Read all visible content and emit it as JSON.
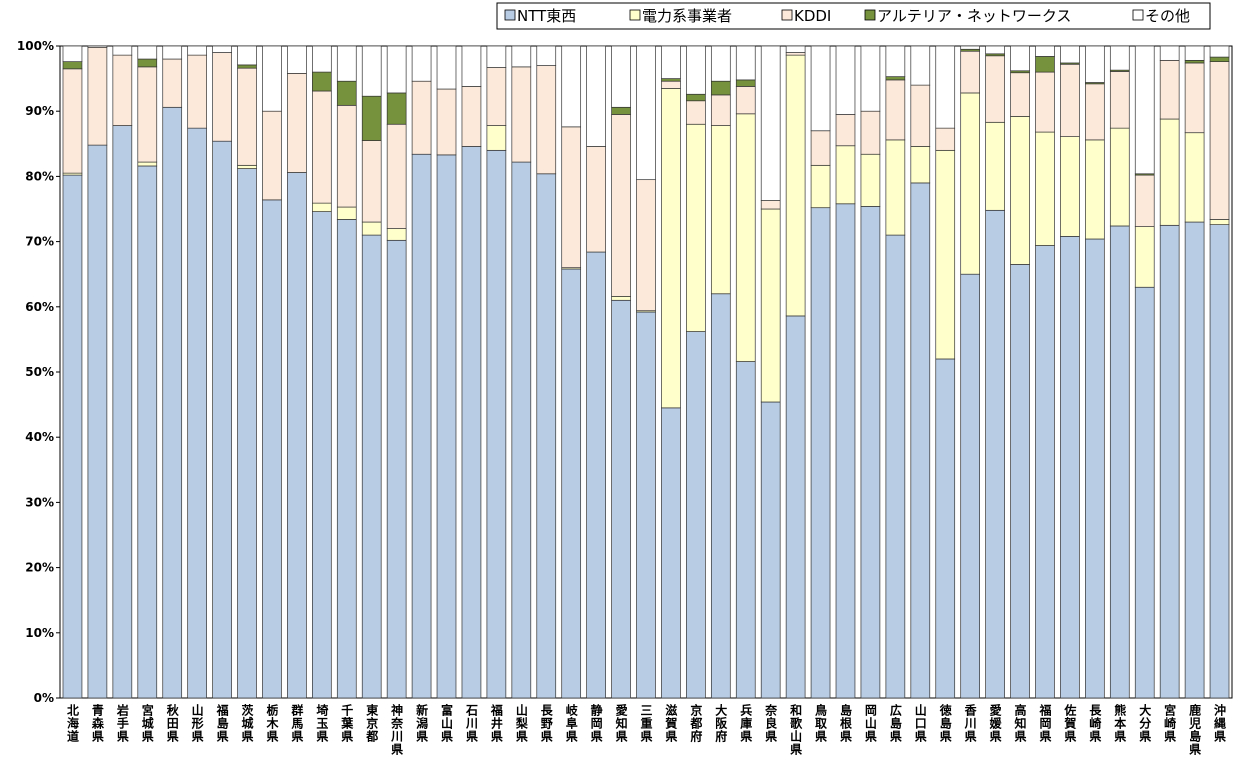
{
  "chart_data": {
    "type": "stacked_bar",
    "categories": [
      "北海道",
      "青森県",
      "岩手県",
      "宮城県",
      "秋田県",
      "山形県",
      "福島県",
      "茨城県",
      "栃木県",
      "群馬県",
      "埼玉県",
      "千葉県",
      "東京都",
      "神奈川県",
      "新潟県",
      "富山県",
      "石川県",
      "福井県",
      "山梨県",
      "長野県",
      "岐阜県",
      "静岡県",
      "愛知県",
      "三重県",
      "滋賀県",
      "京都府",
      "大阪府",
      "兵庫県",
      "奈良県",
      "和歌山県",
      "鳥取県",
      "島根県",
      "岡山県",
      "広島県",
      "山口県",
      "徳島県",
      "香川県",
      "愛媛県",
      "高知県",
      "福岡県",
      "佐賀県",
      "長崎県",
      "熊本県",
      "大分県",
      "宮崎県",
      "鹿児島県",
      "沖縄県"
    ],
    "series": [
      {
        "name": "NTT東西",
        "color": "#b8cce4",
        "values": [
          80.2,
          84.8,
          87.8,
          81.6,
          90.6,
          87.4,
          85.4,
          81.2,
          76.4,
          80.6,
          74.6,
          73.4,
          71,
          70.2,
          83.4,
          83.3,
          84.6,
          84,
          82.2,
          80.4,
          65.8,
          68.4,
          61,
          59.2,
          44.5,
          56.2,
          62,
          51.6,
          45.4,
          58.6,
          75.2,
          75.8,
          75.4,
          71,
          79,
          52,
          65,
          74.8,
          66.5,
          69.4,
          70.8,
          70.4,
          72.4,
          63,
          72.5,
          73,
          72.6
        ]
      },
      {
        "name": "電力系事業者",
        "color": "#ffffcc",
        "values": [
          0.3,
          0,
          0,
          0.6,
          0,
          0,
          0,
          0.5,
          0,
          0,
          1.3,
          1.9,
          2,
          1.8,
          0,
          0,
          0,
          3.8,
          0,
          0,
          0.2,
          0,
          0.6,
          0.2,
          49,
          31.8,
          25.8,
          38,
          29.6,
          40,
          6.5,
          8.9,
          8,
          14.6,
          5.6,
          32,
          27.8,
          13.5,
          22.7,
          17.4,
          15.3,
          15.2,
          15,
          9.3,
          16.3,
          13.7,
          0.8
        ]
      },
      {
        "name": "KDDI",
        "color": "#fde9d9",
        "values": [
          16,
          15,
          10.8,
          14.6,
          7.4,
          11.2,
          13.6,
          14.9,
          13.6,
          15.2,
          17.2,
          15.6,
          12.5,
          16,
          11.2,
          10.1,
          9.2,
          8.9,
          14.6,
          16.6,
          21.6,
          16.2,
          27.9,
          20.1,
          1.1,
          3.6,
          4.7,
          4.2,
          1.3,
          0.4,
          5.3,
          4.8,
          6.6,
          9.2,
          9.4,
          3.4,
          6.4,
          10.2,
          6.7,
          9.2,
          11.1,
          8.6,
          8.7,
          7.9,
          9,
          10.7,
          24.2
        ]
      },
      {
        "name": "アルテリア・ネットワークス",
        "color": "#76923c",
        "values": [
          1.1,
          0,
          0,
          1.2,
          0,
          0,
          0,
          0.5,
          0,
          0,
          2.9,
          3.7,
          6.8,
          4.8,
          0,
          0,
          0,
          0,
          0,
          0,
          0,
          0,
          1.1,
          0,
          0.4,
          1,
          2.1,
          1,
          0,
          0,
          0,
          0,
          0,
          0.5,
          0,
          0,
          0.3,
          0.3,
          0.3,
          2.4,
          0.2,
          0.2,
          0.2,
          0.2,
          0,
          0.4,
          0.7
        ]
      },
      {
        "name": "その他",
        "color": "#ffffff",
        "values": [
          2.4,
          0.2,
          1.4,
          2,
          2,
          1.4,
          1,
          2.9,
          10,
          4.2,
          4,
          5.4,
          7.7,
          7.2,
          5.4,
          6.6,
          6.2,
          3.3,
          3.2,
          3,
          12.4,
          15.4,
          9.4,
          20.5,
          5,
          7.4,
          5.4,
          5.2,
          23.7,
          1,
          13,
          10.5,
          10,
          4.7,
          6,
          12.6,
          0.5,
          1.2,
          3.8,
          1.6,
          2.6,
          5.6,
          3.7,
          19.6,
          2.2,
          2.2,
          1.7
        ]
      }
    ],
    "ylim": [
      0,
      100
    ],
    "yticks": [
      {
        "value": 0,
        "label": "0%"
      },
      {
        "value": 10,
        "label": "10%"
      },
      {
        "value": 20,
        "label": "20%"
      },
      {
        "value": 30,
        "label": "30%"
      },
      {
        "value": 40,
        "label": "40%"
      },
      {
        "value": 50,
        "label": "50%"
      },
      {
        "value": 60,
        "label": "60%"
      },
      {
        "value": 70,
        "label": "70%"
      },
      {
        "value": 80,
        "label": "80%"
      },
      {
        "value": 90,
        "label": "90%"
      },
      {
        "value": 100,
        "label": "100%"
      }
    ],
    "legend": "top-right"
  }
}
